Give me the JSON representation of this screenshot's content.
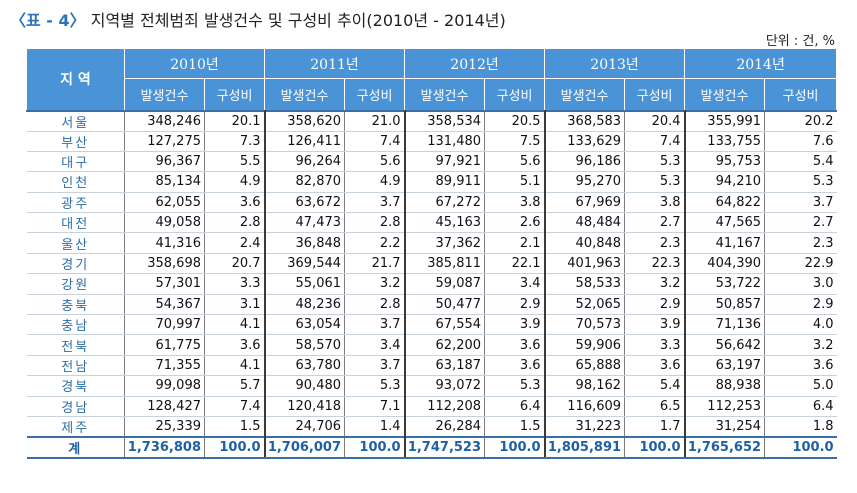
{
  "title": {
    "tag": "〈표 - 4〉",
    "text": "지역별 전체범죄 발생건수 및 구성비 추이(2010년 - 2014년)"
  },
  "unit": "단위 : 건, %",
  "table": {
    "region_header": "지 역",
    "years": [
      "2010년",
      "2011년",
      "2012년",
      "2013년",
      "2014년"
    ],
    "sub_headers": {
      "count": "발생건수",
      "ratio": "구성비"
    },
    "rows": [
      {
        "region": "서울",
        "values": [
          "348,246",
          "20.1",
          "358,620",
          "21.0",
          "358,534",
          "20.5",
          "368,583",
          "20.4",
          "355,991",
          "20.2"
        ]
      },
      {
        "region": "부산",
        "values": [
          "127,275",
          "7.3",
          "126,411",
          "7.4",
          "131,480",
          "7.5",
          "133,629",
          "7.4",
          "133,755",
          "7.6"
        ]
      },
      {
        "region": "대구",
        "values": [
          "96,367",
          "5.5",
          "96,264",
          "5.6",
          "97,921",
          "5.6",
          "96,186",
          "5.3",
          "95,753",
          "5.4"
        ]
      },
      {
        "region": "인천",
        "values": [
          "85,134",
          "4.9",
          "82,870",
          "4.9",
          "89,911",
          "5.1",
          "95,270",
          "5.3",
          "94,210",
          "5.3"
        ]
      },
      {
        "region": "광주",
        "values": [
          "62,055",
          "3.6",
          "63,672",
          "3.7",
          "67,272",
          "3.8",
          "67,969",
          "3.8",
          "64,822",
          "3.7"
        ]
      },
      {
        "region": "대전",
        "values": [
          "49,058",
          "2.8",
          "47,473",
          "2.8",
          "45,163",
          "2.6",
          "48,484",
          "2.7",
          "47,565",
          "2.7"
        ]
      },
      {
        "region": "울산",
        "values": [
          "41,316",
          "2.4",
          "36,848",
          "2.2",
          "37,362",
          "2.1",
          "40,848",
          "2.3",
          "41,167",
          "2.3"
        ]
      },
      {
        "region": "경기",
        "values": [
          "358,698",
          "20.7",
          "369,544",
          "21.7",
          "385,811",
          "22.1",
          "401,963",
          "22.3",
          "404,390",
          "22.9"
        ]
      },
      {
        "region": "강원",
        "values": [
          "57,301",
          "3.3",
          "55,061",
          "3.2",
          "59,087",
          "3.4",
          "58,533",
          "3.2",
          "53,722",
          "3.0"
        ]
      },
      {
        "region": "충북",
        "values": [
          "54,367",
          "3.1",
          "48,236",
          "2.8",
          "50,477",
          "2.9",
          "52,065",
          "2.9",
          "50,857",
          "2.9"
        ]
      },
      {
        "region": "충남",
        "values": [
          "70,997",
          "4.1",
          "63,054",
          "3.7",
          "67,554",
          "3.9",
          "70,573",
          "3.9",
          "71,136",
          "4.0"
        ]
      },
      {
        "region": "전북",
        "values": [
          "61,775",
          "3.6",
          "58,570",
          "3.4",
          "62,200",
          "3.6",
          "59,906",
          "3.3",
          "56,642",
          "3.2"
        ]
      },
      {
        "region": "전남",
        "values": [
          "71,355",
          "4.1",
          "63,780",
          "3.7",
          "63,187",
          "3.6",
          "65,888",
          "3.6",
          "63,197",
          "3.6"
        ]
      },
      {
        "region": "경북",
        "values": [
          "99,098",
          "5.7",
          "90,480",
          "5.3",
          "93,072",
          "5.3",
          "98,162",
          "5.4",
          "88,938",
          "5.0"
        ]
      },
      {
        "region": "경남",
        "values": [
          "128,427",
          "7.4",
          "120,418",
          "7.1",
          "112,208",
          "6.4",
          "116,609",
          "6.5",
          "112,253",
          "6.4"
        ]
      },
      {
        "region": "제주",
        "values": [
          "25,339",
          "1.5",
          "24,706",
          "1.4",
          "26,284",
          "1.5",
          "31,223",
          "1.7",
          "31,254",
          "1.8"
        ]
      }
    ],
    "total": {
      "region": "계",
      "values": [
        "1,736,808",
        "100.0",
        "1,706,007",
        "100.0",
        "1,747,523",
        "100.0",
        "1,805,891",
        "100.0",
        "1,765,652",
        "100.0"
      ]
    }
  },
  "colors": {
    "header_bg": "#4a93d6",
    "region_text": "#2e6ea8",
    "title_tag": "#2e74b5"
  }
}
